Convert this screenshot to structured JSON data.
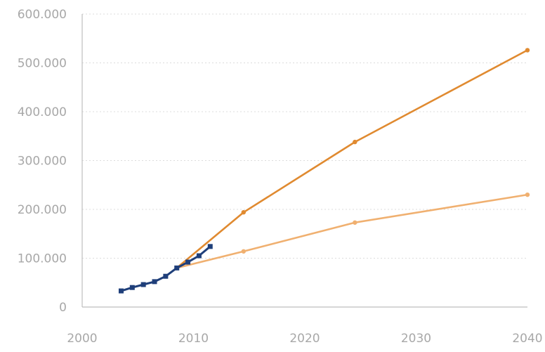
{
  "chart_data": {
    "type": "line",
    "title": "",
    "xlabel": "",
    "ylabel": "",
    "xlim": [
      2000,
      2040
    ],
    "ylim": [
      0,
      600000
    ],
    "grid": true,
    "x_ticks": [
      "2000",
      "2010",
      "2020",
      "2030",
      "2040"
    ],
    "y_ticks": [
      "0",
      "100.000",
      "200.000",
      "300.000",
      "400.000",
      "500.000",
      "600.000"
    ],
    "series": [
      {
        "color": "#1f3f7a",
        "x": [
          2003.5,
          2004.5,
          2005.5,
          2006.5,
          2007.5,
          2008.5,
          2009.5,
          2010.5,
          2011.5
        ],
        "values": [
          33000,
          40000,
          46000,
          52000,
          63000,
          80000,
          92000,
          105000,
          124000
        ]
      },
      {
        "color": "#e08a30",
        "x": [
          2008.5,
          2014.5,
          2024.5,
          2040
        ],
        "values": [
          80000,
          194000,
          338000,
          526000
        ]
      },
      {
        "color": "#f0b070",
        "x": [
          2008.5,
          2014.5,
          2024.5,
          2040
        ],
        "values": [
          80000,
          114000,
          173000,
          230000
        ]
      }
    ]
  }
}
